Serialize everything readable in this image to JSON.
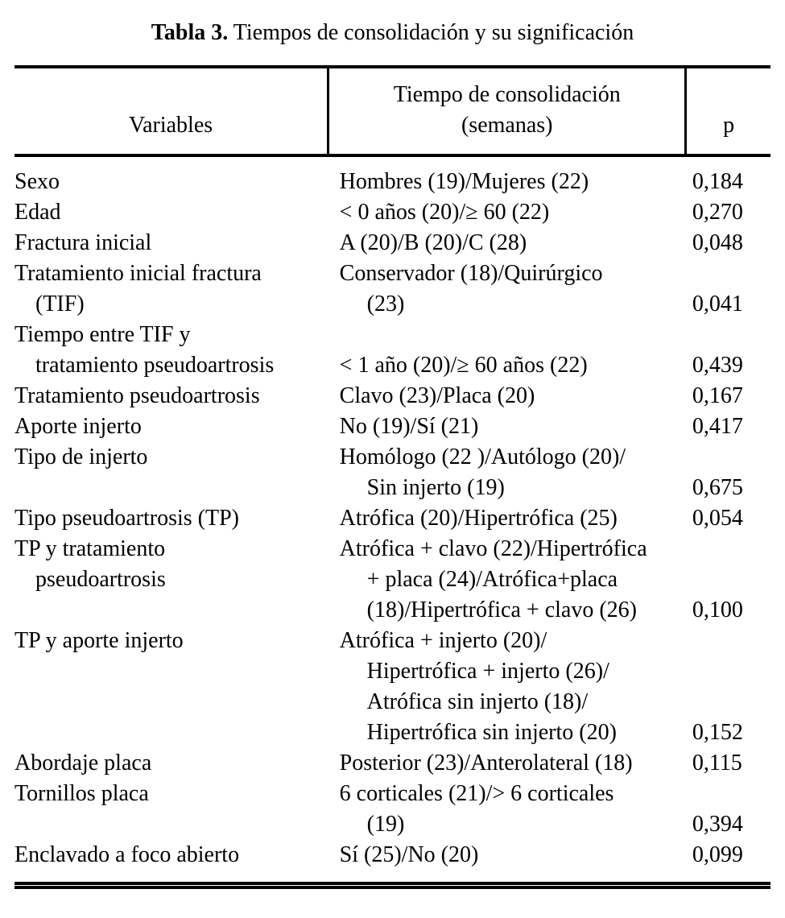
{
  "title": {
    "label": "Tabla 3.",
    "text": " Tiempos de consolidación y su significación"
  },
  "table": {
    "headers": {
      "variables": "Variables",
      "time": [
        "Tiempo de consolidación",
        "(semanas)"
      ],
      "p": "p"
    },
    "rows": [
      {
        "variable": "Sexo",
        "value": "Hombres (19)/Mujeres (22)",
        "p": "0,184"
      },
      {
        "variable": "Edad",
        "value": "< 0 años (20)/≥ 60 (22)",
        "p": "0,270"
      },
      {
        "variable": "Fractura inicial",
        "value": "A (20)/B (20)/C (28)",
        "p": "0,048"
      },
      {
        "variable": [
          "Tratamiento inicial fractura",
          "(TIF)"
        ],
        "value": [
          "Conservador (18)/Quirúrgico",
          "(23)"
        ],
        "p": "0,041"
      },
      {
        "variable": [
          "Tiempo entre TIF y",
          "tratamiento pseudoartrosis"
        ],
        "value": "< 1 año (20)/≥ 60 años (22)",
        "p": "0,439"
      },
      {
        "variable": "Tratamiento pseudoartrosis",
        "value": "Clavo (23)/Placa (20)",
        "p": "0,167"
      },
      {
        "variable": "Aporte injerto",
        "value": "No (19)/Sí (21)",
        "p": "0,417"
      },
      {
        "variable": "Tipo de injerto",
        "value": [
          "Homólogo (22 )/Autólogo (20)/",
          "Sin injerto (19)"
        ],
        "p": "0,675"
      },
      {
        "variable": "Tipo pseudoartrosis (TP)",
        "value": "Atrófica (20)/Hipertrófica (25)",
        "p": "0,054"
      },
      {
        "variable": [
          "TP y tratamiento",
          "pseudoartrosis"
        ],
        "value": [
          "Atrófica + clavo (22)/Hipertrófica",
          "+ placa (24)/Atrófica+placa",
          "(18)/Hipertrófica + clavo (26)"
        ],
        "p": "0,100"
      },
      {
        "variable": "TP y aporte injerto",
        "value": [
          "Atrófica + injerto (20)/",
          "Hipertrófica + injerto (26)/",
          "Atrófica sin injerto (18)/",
          "Hipertrófica sin injerto (20)"
        ],
        "p": "0,152"
      },
      {
        "variable": "Abordaje placa",
        "value": "Posterior (23)/Anterolateral (18)",
        "p": "0,115"
      },
      {
        "variable": "Tornillos placa",
        "value": [
          "6 corticales (21)/> 6 corticales",
          "(19)"
        ],
        "p": "0,394"
      },
      {
        "variable": "Enclavado a foco abierto",
        "value": "Sí (25)/No (20)",
        "p": "0,099"
      }
    ]
  }
}
